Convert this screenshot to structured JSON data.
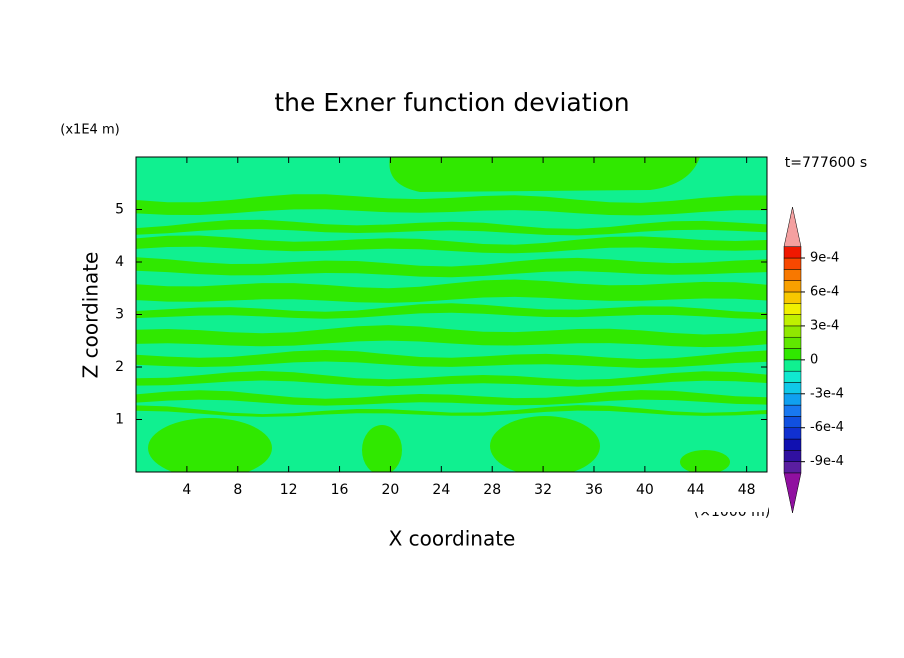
{
  "chart_data": {
    "type": "contour",
    "title": "the Exner function deviation",
    "x_label": "X coordinate",
    "y_label": "Z coordinate",
    "x_unit": "(×1000 m)",
    "y_unit": "(x1E4 m)",
    "annotation": "t=777600 s",
    "xlim": [
      0,
      49.6
    ],
    "ylim": [
      0,
      6
    ],
    "xticks": [
      4,
      8,
      12,
      16,
      20,
      24,
      28,
      32,
      36,
      40,
      44,
      48
    ],
    "yticks": [
      1,
      2,
      3,
      4,
      5
    ],
    "colorbar": {
      "clim": [
        -0.001,
        0.001
      ],
      "ticks": [
        {
          "value": 0.0009,
          "label": "9e-4"
        },
        {
          "value": 0.0006,
          "label": "6e-4"
        },
        {
          "value": 0.0003,
          "label": "3e-4"
        },
        0,
        {
          "value": -0.0003,
          "label": "-3e-4"
        },
        {
          "value": -0.0006,
          "label": "-6e-4"
        },
        {
          "value": -0.0009,
          "label": "-9e-4"
        }
      ],
      "colors": [
        "#5a1ea0",
        "#3010a0",
        "#1010b0",
        "#1030d0",
        "#1050e0",
        "#1878f0",
        "#10a0f0",
        "#10c8e8",
        "#10e8d0",
        "#10f090",
        "#30e800",
        "#60e800",
        "#90e800",
        "#c0f000",
        "#f0f000",
        "#f8c800",
        "#f8a000",
        "#f87800",
        "#f84800",
        "#f01800"
      ],
      "under_color": "#9010a0",
      "over_color": "#f4a0a0"
    }
  }
}
